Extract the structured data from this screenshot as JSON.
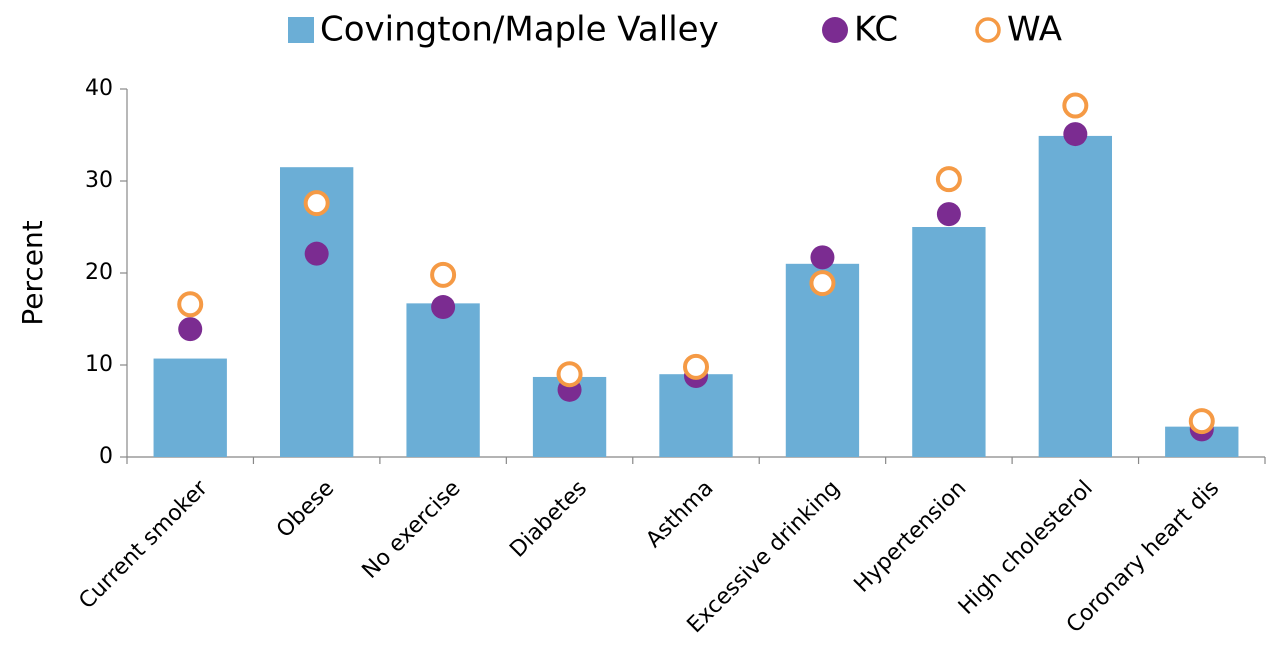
{
  "chart_data": {
    "type": "bar",
    "categories": [
      "Current smoker",
      "Obese",
      "No exercise",
      "Diabetes",
      "Asthma",
      "Excessive drinking",
      "Hypertension",
      "High cholesterol",
      "Coronary heart dis"
    ],
    "series": [
      {
        "name": "Covington/Maple Valley",
        "color": "#6baed6",
        "marker": "bar",
        "values": [
          10.7,
          31.5,
          16.7,
          8.7,
          9.0,
          21.0,
          25.0,
          34.9,
          3.3
        ]
      },
      {
        "name": "KC",
        "color": "#7b2c91",
        "marker": "dot",
        "values": [
          13.9,
          22.1,
          16.3,
          7.3,
          8.8,
          21.7,
          26.4,
          35.1,
          3.0
        ]
      },
      {
        "name": "WA",
        "color": "#f59a45",
        "marker": "ring",
        "values": [
          16.6,
          27.6,
          19.8,
          9.0,
          9.8,
          18.9,
          30.2,
          38.2,
          3.9
        ]
      }
    ],
    "ylabel": "Percent",
    "ylim": [
      0,
      40
    ],
    "yticks": [
      0,
      10,
      20,
      30,
      40
    ],
    "grid": false,
    "legend": "top"
  }
}
